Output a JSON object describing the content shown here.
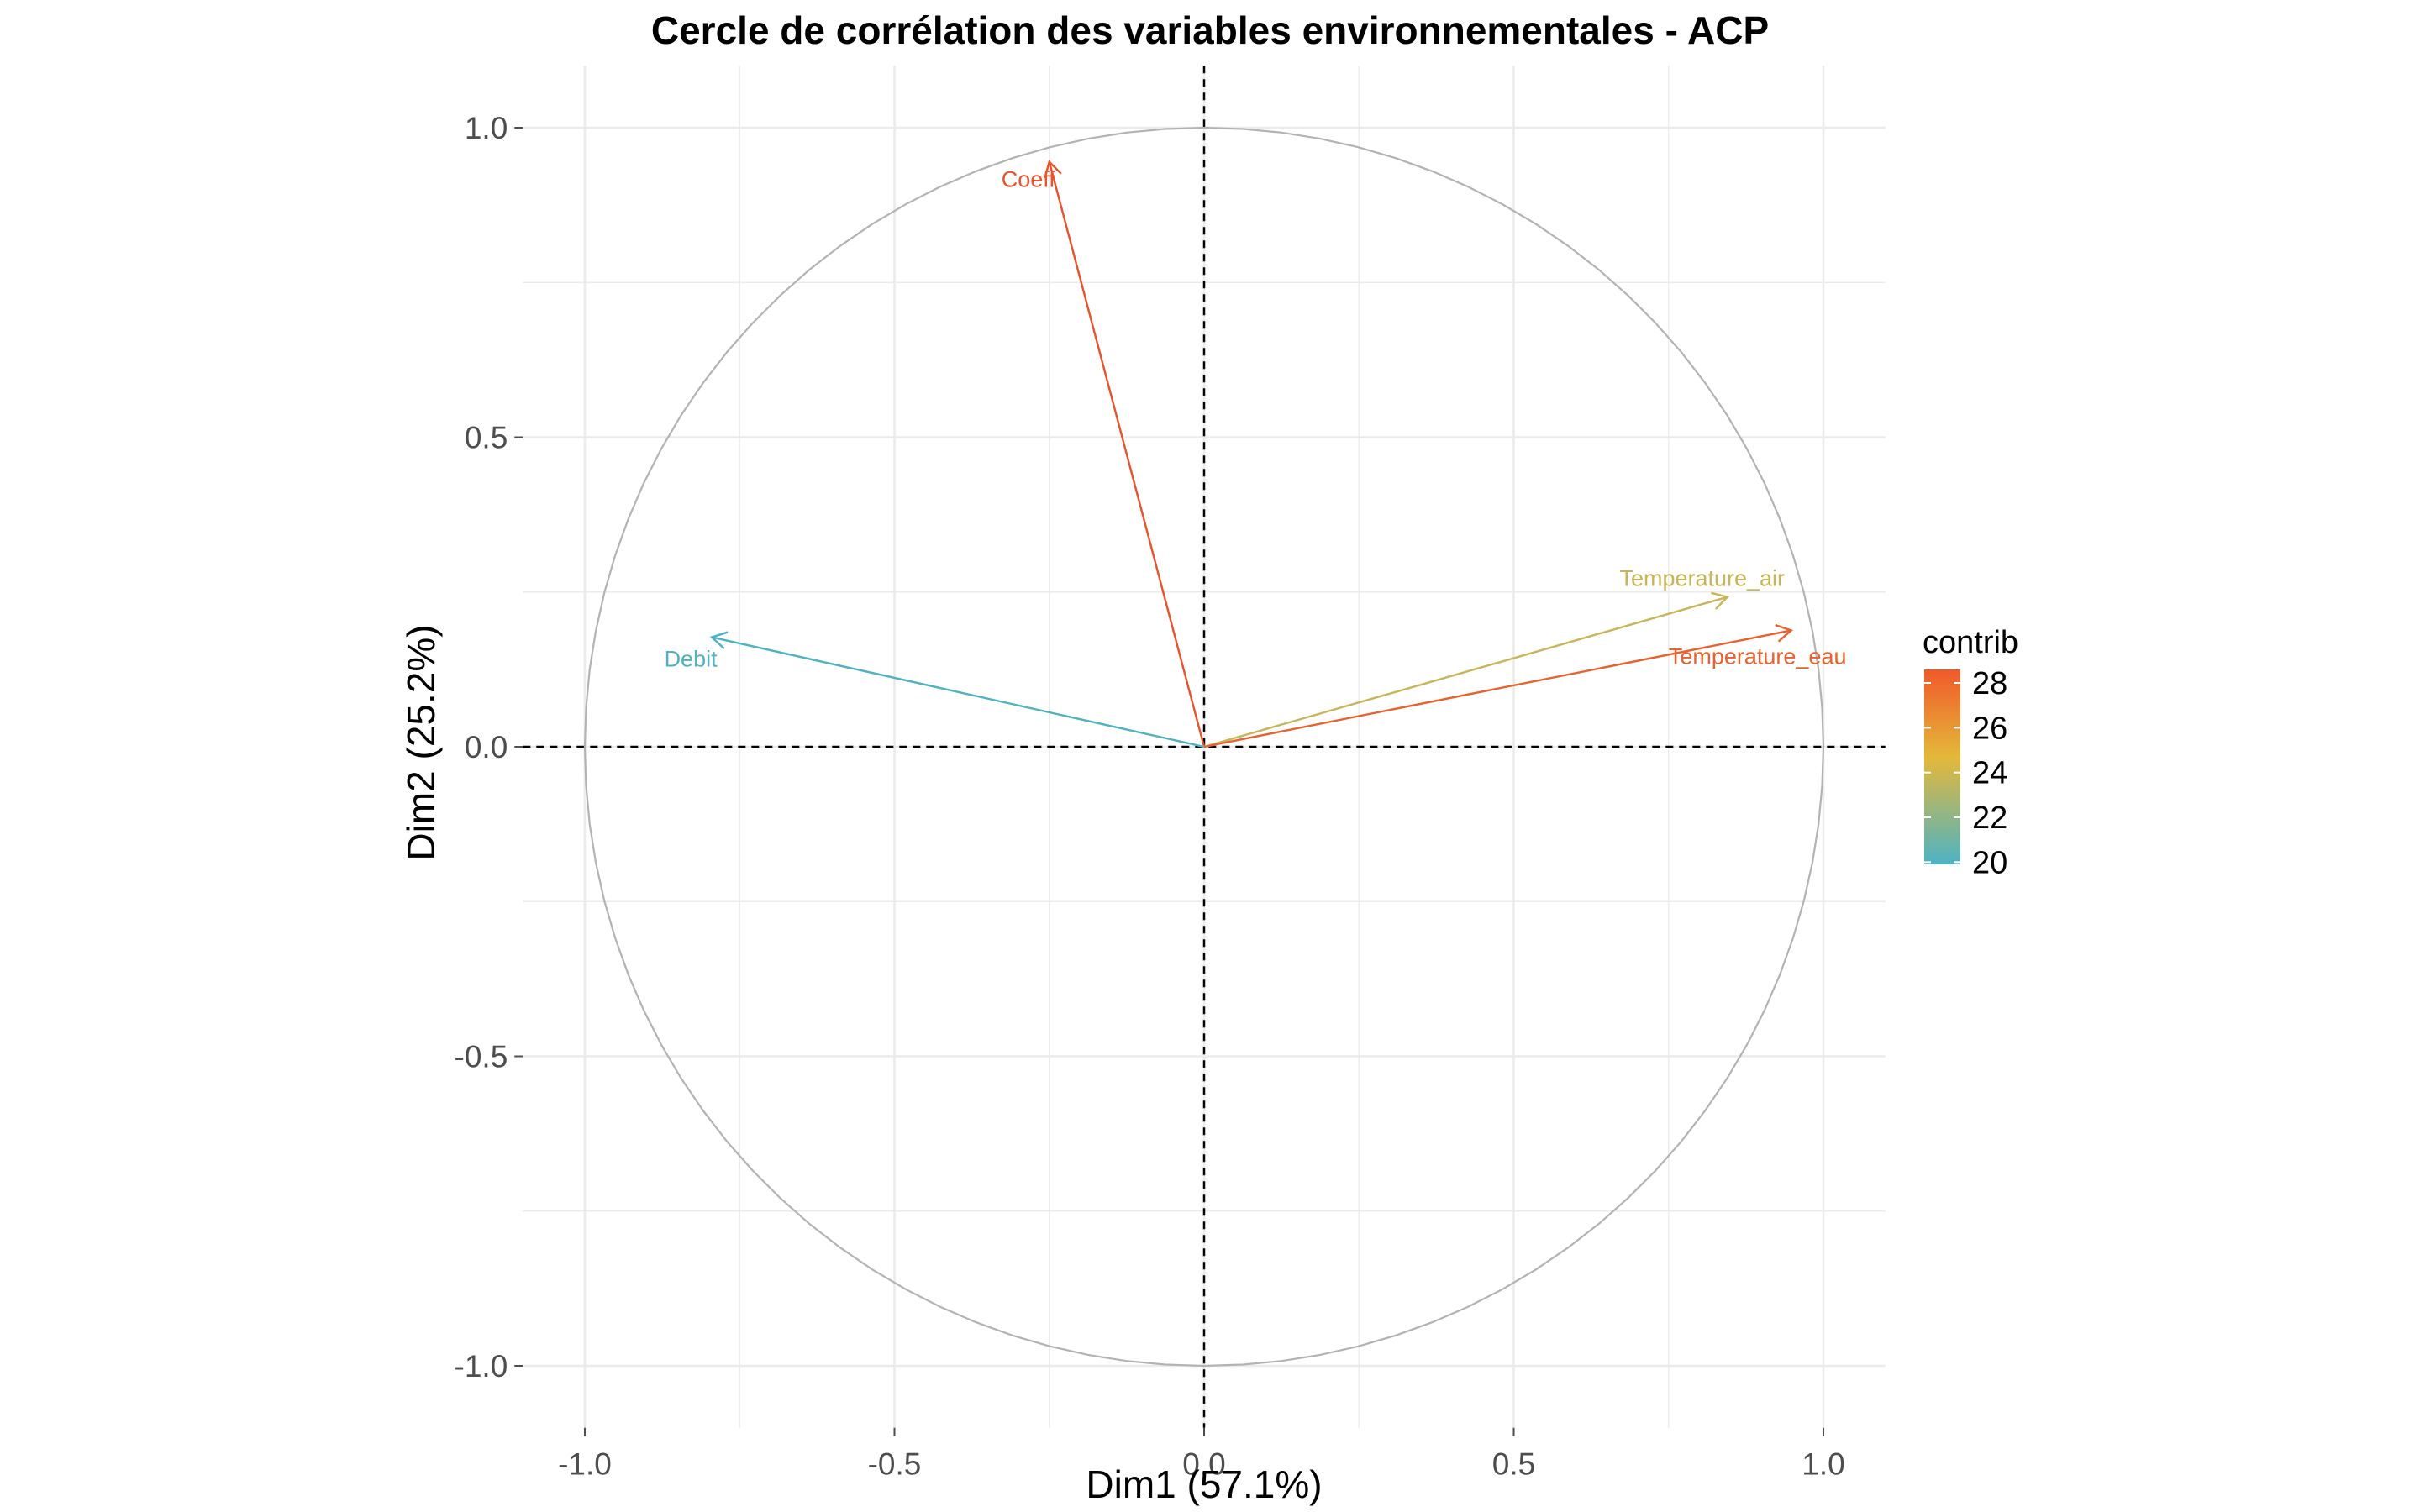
{
  "chart_data": {
    "type": "scatter",
    "subtype": "pca-correlation-circle",
    "title": "Cercle de corrélation des variables environnementales - ACP",
    "xlabel": "Dim1 (57.1%)",
    "ylabel": "Dim2 (25.2%)",
    "xlim": [
      -1.1,
      1.1
    ],
    "ylim": [
      -1.1,
      1.1
    ],
    "x_ticks": [
      -1.0,
      -0.5,
      0.0,
      0.5,
      1.0
    ],
    "y_ticks": [
      -1.0,
      -0.5,
      0.0,
      0.5,
      1.0
    ],
    "x_tick_labels": [
      "-1.0",
      "-0.5",
      "0.0",
      "0.5",
      "1.0"
    ],
    "y_tick_labels": [
      "-1.0",
      "-0.5",
      "0.0",
      "0.5",
      "1.0"
    ],
    "grid": true,
    "reference_lines": {
      "x": 0,
      "y": 0,
      "style": "dashed"
    },
    "unit_circle": true,
    "variables": [
      {
        "name": "Coeff",
        "x": -0.25,
        "y": 0.945,
        "contrib": 28.3,
        "color": "#E8532B"
      },
      {
        "name": "Debit",
        "x": -0.795,
        "y": 0.177,
        "contrib": 20.2,
        "color": "#4DB3C3"
      },
      {
        "name": "Temperature_air",
        "x": 0.845,
        "y": 0.242,
        "contrib": 23.0,
        "color": "#C9B558"
      },
      {
        "name": "Temperature_eau",
        "x": 0.948,
        "y": 0.188,
        "contrib": 28.1,
        "color": "#E8612E"
      }
    ],
    "legend": {
      "title": "contrib",
      "position": "right",
      "ticks": [
        20,
        22,
        24,
        26,
        28
      ],
      "tick_labels": [
        "20",
        "22",
        "24",
        "26",
        "28"
      ],
      "range": [
        19.9,
        28.6
      ],
      "colors": {
        "low": "#4DB3C3",
        "mid": "#E4B83A",
        "high": "#F0592A"
      }
    },
    "colors": {
      "circle": "#b3b3b3",
      "grid": "#ebebeb",
      "reference_line": "#000000"
    }
  }
}
